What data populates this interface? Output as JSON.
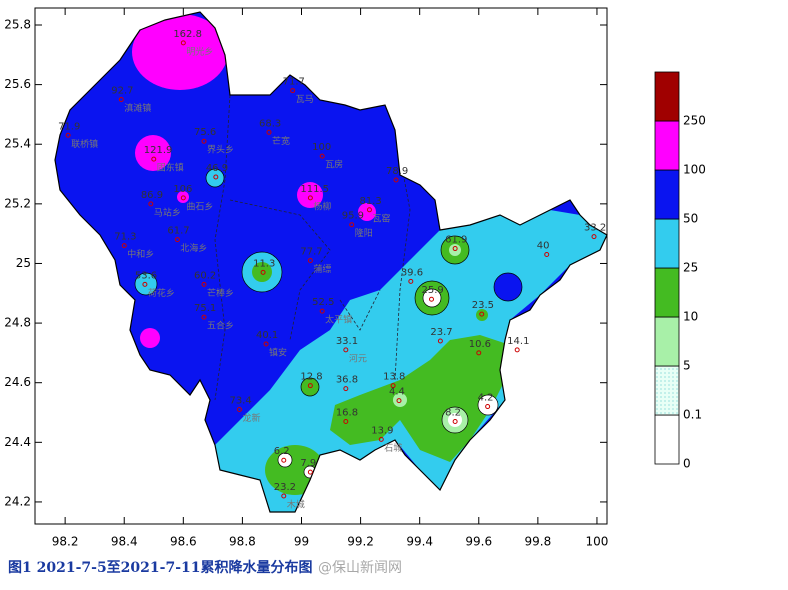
{
  "map": {
    "caption": "图1 2021-7-5至2021-7-11累积降水量分布图",
    "watermark": "@保山新闻网",
    "xlim": [
      98.098,
      100.034
    ],
    "ylim": [
      24.126,
      25.857
    ],
    "xticks": [
      98.2,
      98.4,
      98.6,
      98.8,
      99,
      99.2,
      99.4,
      99.6,
      99.8,
      100
    ],
    "yticks": [
      24.2,
      24.4,
      24.6,
      24.8,
      25,
      25.2,
      25.4,
      25.6,
      25.8
    ],
    "legend": {
      "bins": [
        0,
        0.1,
        5,
        10,
        25,
        50,
        100,
        250
      ],
      "colors": [
        "#ffffff",
        "#d8fff0",
        "#a8f0a8",
        "#44bb22",
        "#33ccee",
        "#0a14f0",
        "#ff00ff",
        "#a00000"
      ]
    },
    "stations": [
      {
        "value": 162.8,
        "name": "明光乡",
        "lon": 98.6,
        "lat": 25.74
      },
      {
        "value": 92.7,
        "name": "滇滩镇",
        "lon": 98.39,
        "lat": 25.55
      },
      {
        "value": 71.9,
        "name": "联桥镇",
        "lon": 98.21,
        "lat": 25.43
      },
      {
        "value": 75.6,
        "name": "界头乡",
        "lon": 98.67,
        "lat": 25.41
      },
      {
        "value": 68.3,
        "name": "芒宽",
        "lon": 98.89,
        "lat": 25.44
      },
      {
        "value": 71.7,
        "name": "瓦马",
        "lon": 98.97,
        "lat": 25.58
      },
      {
        "value": 121.9,
        "name": "固东镇",
        "lon": 98.5,
        "lat": 25.35
      },
      {
        "value": 100.0,
        "name": "瓦房",
        "lon": 99.07,
        "lat": 25.36
      },
      {
        "value": 86.9,
        "name": "马站乡",
        "lon": 98.49,
        "lat": 25.2
      },
      {
        "value": 106,
        "name": "曲石乡",
        "lon": 98.6,
        "lat": 25.22
      },
      {
        "value": 46.9,
        "lon": 98.71,
        "lat": 25.29
      },
      {
        "value": 111.5,
        "name": "杨柳",
        "lon": 99.03,
        "lat": 25.22
      },
      {
        "value": 81.3,
        "name": "瓦窑",
        "lon": 99.23,
        "lat": 25.18
      },
      {
        "value": 95.9,
        "name": "隆阳",
        "lon": 99.17,
        "lat": 25.13
      },
      {
        "value": 78.9,
        "lon": 99.32,
        "lat": 25.28
      },
      {
        "value": 71.3,
        "name": "中和乡",
        "lon": 98.4,
        "lat": 25.06
      },
      {
        "value": 61.7,
        "name": "北海乡",
        "lon": 98.58,
        "lat": 25.08
      },
      {
        "value": 53.6,
        "name": "荷花乡",
        "lon": 98.47,
        "lat": 24.93
      },
      {
        "value": 60.2,
        "name": "芒棒乡",
        "lon": 98.67,
        "lat": 24.93
      },
      {
        "value": 11.3,
        "lon": 98.87,
        "lat": 24.97
      },
      {
        "value": 77.7,
        "name": "蒲缥",
        "lon": 99.03,
        "lat": 25.01
      },
      {
        "value": 75.1,
        "name": "五合乡",
        "lon": 98.67,
        "lat": 24.82
      },
      {
        "value": 40.1,
        "name": "镇安",
        "lon": 98.88,
        "lat": 24.73
      },
      {
        "value": 52.5,
        "name": "太平镇",
        "lon": 99.07,
        "lat": 24.84
      },
      {
        "value": 33.1,
        "name": "河元",
        "lon": 99.15,
        "lat": 24.71
      },
      {
        "value": 73.4,
        "name": "龙新",
        "lon": 98.79,
        "lat": 24.51
      },
      {
        "value": 36.8,
        "lon": 99.15,
        "lat": 24.58
      },
      {
        "value": 13.8,
        "lon": 99.31,
        "lat": 24.59
      },
      {
        "value": 12.8,
        "lon": 99.03,
        "lat": 24.59
      },
      {
        "value": 16.8,
        "lon": 99.15,
        "lat": 24.47
      },
      {
        "value": 13.9,
        "name": "石城",
        "lon": 99.27,
        "lat": 24.41
      },
      {
        "value": 6.2,
        "lon": 98.94,
        "lat": 24.34
      },
      {
        "value": 7.9,
        "lon": 99.03,
        "lat": 24.3
      },
      {
        "value": 23.2,
        "name": "木城",
        "lon": 98.94,
        "lat": 24.22
      },
      {
        "value": 39.6,
        "lon": 99.37,
        "lat": 24.94
      },
      {
        "value": 25.9,
        "lon": 99.44,
        "lat": 24.88
      },
      {
        "value": 23.5,
        "lon": 99.61,
        "lat": 24.83
      },
      {
        "value": 40.0,
        "lon": 99.83,
        "lat": 25.03
      },
      {
        "value": 33.2,
        "lon": 99.99,
        "lat": 25.09
      },
      {
        "value": 10.6,
        "lon": 99.6,
        "lat": 24.7
      },
      {
        "value": 14.1,
        "lon": 99.73,
        "lat": 24.71
      },
      {
        "value": 23.7,
        "lon": 99.47,
        "lat": 24.74
      },
      {
        "value": 8.2,
        "lon": 99.52,
        "lat": 24.47
      },
      {
        "value": 4.2,
        "lon": 99.63,
        "lat": 24.52
      },
      {
        "value": 4.4,
        "lon": 99.33,
        "lat": 24.54
      },
      {
        "value": 61.9,
        "lon": 99.52,
        "lat": 25.05
      }
    ]
  }
}
